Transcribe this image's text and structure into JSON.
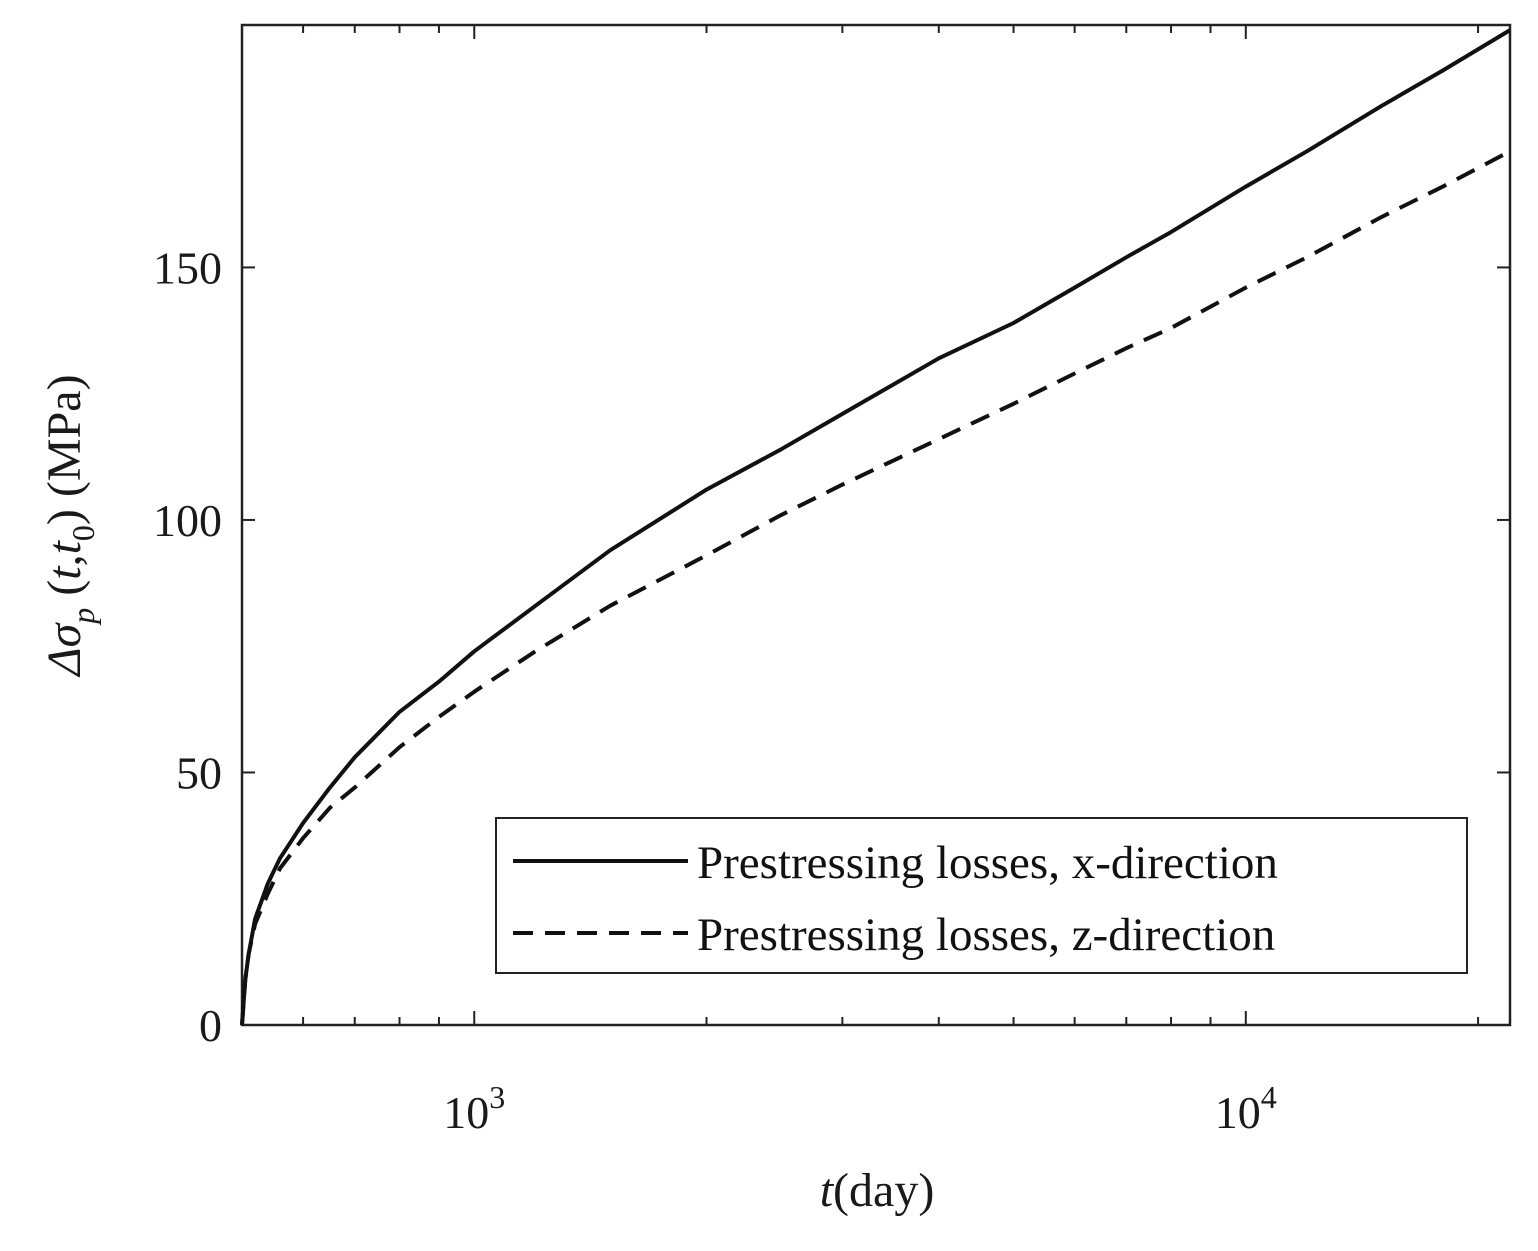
{
  "chart_data": {
    "type": "line",
    "xscale": "log",
    "xlim": [
      500,
      22000
    ],
    "ylim": [
      0,
      198
    ],
    "xlabel": {
      "italic": "t",
      "rest": "(day)"
    },
    "ylabel": {
      "delta": "Δσ",
      "sub_p": "p",
      "open": " (",
      "t": "t",
      "comma": ",",
      "t0": "t",
      "sub_0": "0",
      "close": ") (MPa)"
    },
    "yticks": [
      {
        "value": 0,
        "label": "0"
      },
      {
        "value": 50,
        "label": "50"
      },
      {
        "value": 100,
        "label": "100"
      },
      {
        "value": 150,
        "label": "150"
      }
    ],
    "xticks_major": [
      {
        "value": 1000,
        "base": "10",
        "exp": "3"
      },
      {
        "value": 10000,
        "base": "10",
        "exp": "4"
      }
    ],
    "xticks_minor": [
      600,
      700,
      800,
      900,
      2000,
      3000,
      4000,
      5000,
      6000,
      7000,
      8000,
      9000,
      20000
    ],
    "legend_position": "bottom-right",
    "series": [
      {
        "name": "Prestressing losses, x-direction",
        "style": "solid",
        "x": [
          500,
          505,
          510,
          520,
          540,
          560,
          600,
          650,
          700,
          800,
          900,
          1000,
          1200,
          1500,
          2000,
          2500,
          3000,
          4000,
          5000,
          6000,
          7000,
          8000,
          10000,
          12000,
          15000,
          18000,
          22000
        ],
        "y": [
          0,
          9,
          14,
          21,
          28,
          33,
          40,
          47,
          53,
          62,
          68,
          74,
          83,
          94,
          106,
          114,
          121,
          132,
          139,
          146,
          152,
          157,
          166,
          173,
          182,
          189,
          197
        ]
      },
      {
        "name": "Prestressing losses, z-direction",
        "style": "dashed",
        "x": [
          500,
          505,
          510,
          520,
          540,
          560,
          600,
          650,
          700,
          800,
          900,
          1000,
          1200,
          1500,
          2000,
          2500,
          3000,
          4000,
          5000,
          6000,
          7000,
          8000,
          10000,
          12000,
          15000,
          18000,
          22000
        ],
        "y": [
          0,
          9,
          14,
          20,
          26,
          31,
          37,
          43,
          47,
          55,
          61,
          66,
          74,
          83,
          93,
          101,
          107,
          116,
          123,
          129,
          134,
          138,
          146,
          152,
          160,
          166,
          173
        ]
      }
    ]
  }
}
